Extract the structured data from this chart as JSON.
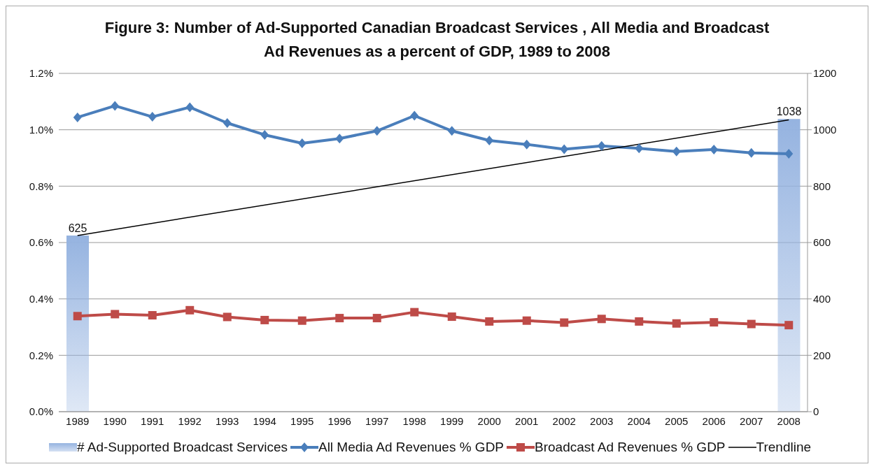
{
  "chart_data": {
    "type": "line",
    "title": "Figure 3: Number of Ad-Supported Canadian  Broadcast Services , All Media and Broadcast Ad Revenues as a percent of GDP, 1989 to 2008",
    "categories": [
      "1989",
      "1990",
      "1991",
      "1992",
      "1993",
      "1994",
      "1995",
      "1996",
      "1997",
      "1998",
      "1999",
      "2000",
      "2001",
      "2002",
      "2003",
      "2004",
      "2005",
      "2006",
      "2007",
      "2008"
    ],
    "series": [
      {
        "name": "# Ad-Supported Broadcast Services",
        "type": "bar",
        "axis": "y2",
        "color": "#95b3e0",
        "values": [
          625,
          null,
          null,
          null,
          null,
          null,
          null,
          null,
          null,
          null,
          null,
          null,
          null,
          null,
          null,
          null,
          null,
          null,
          null,
          1038
        ],
        "value_labels": [
          "625",
          null,
          null,
          null,
          null,
          null,
          null,
          null,
          null,
          null,
          null,
          null,
          null,
          null,
          null,
          null,
          null,
          null,
          null,
          "1038"
        ]
      },
      {
        "name": "All Media Ad Revenues % GDP",
        "marker": "diamond",
        "color": "#4a7ebb",
        "values": [
          1.044,
          1.085,
          1.046,
          1.08,
          1.024,
          0.982,
          0.952,
          0.969,
          0.996,
          1.05,
          0.996,
          0.962,
          0.948,
          0.931,
          0.943,
          0.934,
          0.923,
          0.93,
          0.918,
          0.915
        ]
      },
      {
        "name": "Broadcast Ad Revenues % GDP",
        "marker": "square",
        "color": "#be4b48",
        "values": [
          0.339,
          0.346,
          0.342,
          0.36,
          0.336,
          0.325,
          0.323,
          0.332,
          0.332,
          0.353,
          0.337,
          0.32,
          0.323,
          0.316,
          0.329,
          0.32,
          0.313,
          0.317,
          0.311,
          0.307
        ]
      },
      {
        "name": "Trendline",
        "marker": "none",
        "axis": "y2",
        "color": "#000000",
        "values": [
          625,
          null,
          null,
          null,
          null,
          null,
          null,
          null,
          null,
          null,
          null,
          null,
          null,
          null,
          null,
          null,
          null,
          null,
          null,
          1035
        ]
      }
    ],
    "ylim": [
      0,
      1.2
    ],
    "yticks": [
      {
        "value": 0,
        "label": "0.0%"
      },
      {
        "value": 0.2,
        "label": "0.2%"
      },
      {
        "value": 0.4,
        "label": "0.4%"
      },
      {
        "value": 0.6,
        "label": "0.6%"
      },
      {
        "value": 0.8,
        "label": "0.8%"
      },
      {
        "value": 1.0,
        "label": "1.0%"
      },
      {
        "value": 1.2,
        "label": "1.2%"
      }
    ],
    "y2lim": [
      0,
      1200
    ],
    "y2ticks": [
      0,
      200,
      400,
      600,
      800,
      1000,
      1200
    ],
    "grid": "y",
    "legend": "bottom"
  }
}
